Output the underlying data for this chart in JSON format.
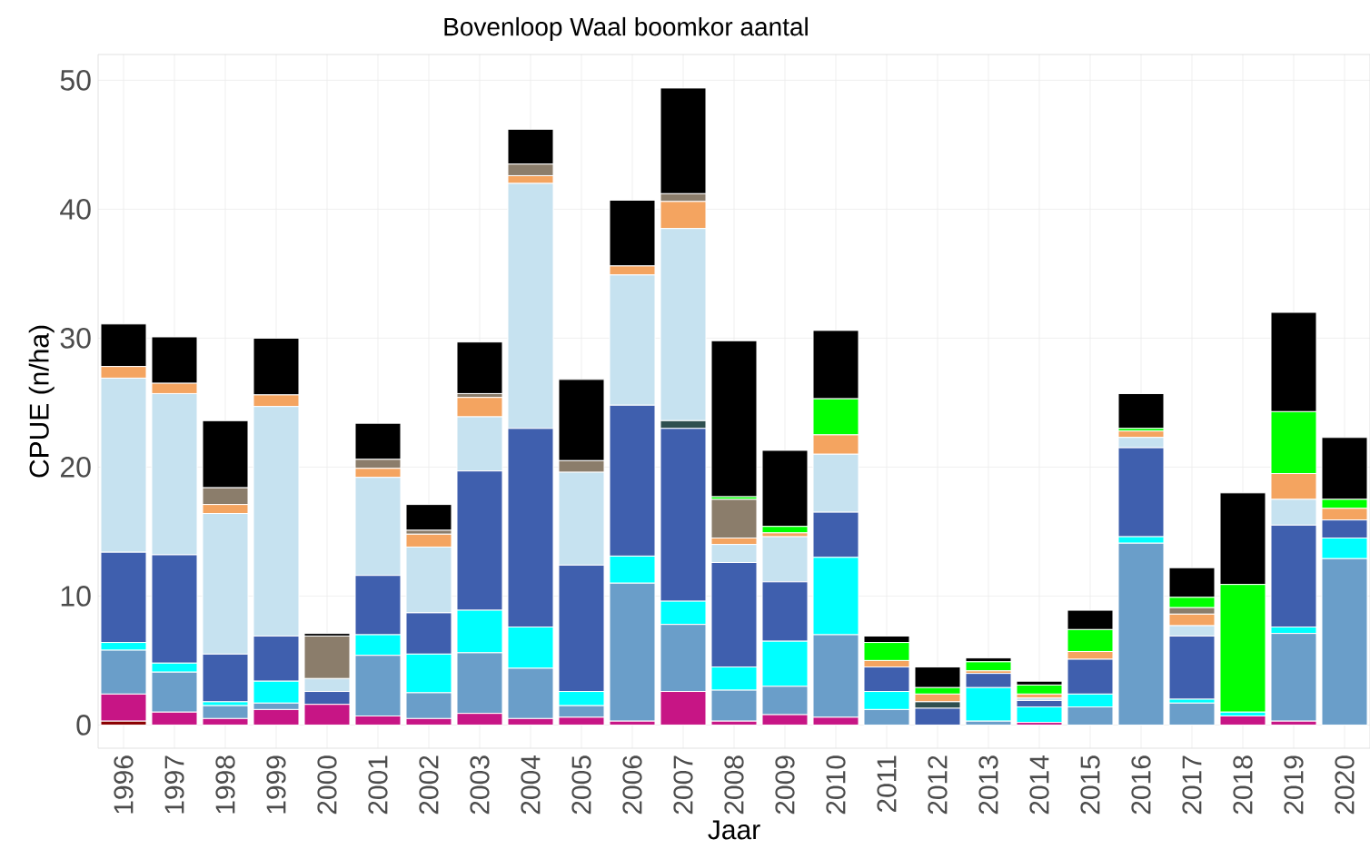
{
  "chart_data": {
    "type": "bar",
    "stacked": true,
    "title": "Bovenloop Waal boomkor aantal",
    "xlabel": "Jaar",
    "ylabel": "CPUE (n/ha)",
    "categories": [
      "1996",
      "1997",
      "1998",
      "1999",
      "2000",
      "2001",
      "2002",
      "2003",
      "2004",
      "2005",
      "2006",
      "2007",
      "2008",
      "2009",
      "2010",
      "2011",
      "2012",
      "2013",
      "2014",
      "2015",
      "2016",
      "2017",
      "2018",
      "2019",
      "2020"
    ],
    "ylim": [
      -1.8,
      52
    ],
    "yticks": [
      0,
      10,
      20,
      30,
      40,
      50
    ],
    "grid": true,
    "series": [
      {
        "color": "#8b0000",
        "values": [
          0.3,
          0,
          0,
          0,
          0,
          0,
          0,
          0,
          0,
          0,
          0,
          0,
          0,
          0,
          0,
          0,
          0,
          0,
          0,
          0,
          0,
          0,
          0,
          0,
          0
        ]
      },
      {
        "color": "#c71585",
        "values": [
          2.1,
          1.0,
          0.5,
          1.2,
          1.6,
          0.7,
          0.5,
          0.9,
          0.5,
          0.6,
          0.3,
          2.6,
          0.3,
          0.8,
          0.6,
          0,
          0,
          0,
          0.2,
          0,
          0,
          0,
          0.7,
          0.3,
          0
        ]
      },
      {
        "color": "#6a9ec9",
        "values": [
          3.4,
          3.1,
          1.0,
          0.5,
          0,
          4.7,
          2.0,
          4.7,
          3.9,
          0.9,
          10.7,
          5.2,
          2.4,
          2.2,
          6.4,
          1.2,
          0,
          0.3,
          0,
          1.4,
          14.1,
          1.7,
          0,
          6.8,
          12.9
        ]
      },
      {
        "color": "#00ffff",
        "values": [
          0.6,
          0.7,
          0.3,
          1.7,
          0,
          1.6,
          3.0,
          3.3,
          3.2,
          1.1,
          2.1,
          1.8,
          1.8,
          3.5,
          6.0,
          1.4,
          0,
          2.6,
          1.2,
          1.0,
          0.5,
          0.3,
          0.3,
          0.5,
          1.6
        ]
      },
      {
        "color": "#3f5fae",
        "values": [
          7.0,
          8.4,
          3.7,
          3.5,
          1.0,
          4.6,
          3.2,
          10.8,
          15.4,
          9.8,
          11.7,
          13.4,
          8.1,
          4.6,
          3.5,
          1.9,
          1.3,
          1.1,
          0.5,
          2.7,
          6.9,
          4.9,
          0,
          7.9,
          1.4
        ]
      },
      {
        "color": "#2f4f4f",
        "values": [
          0,
          0,
          0,
          0,
          0,
          0,
          0,
          0,
          0,
          0,
          0,
          0.6,
          0,
          0,
          0,
          0,
          0.5,
          0,
          0,
          0,
          0,
          0,
          0,
          0,
          0
        ]
      },
      {
        "color": "#c6e2f0",
        "values": [
          13.5,
          12.5,
          10.9,
          17.8,
          1.0,
          7.6,
          5.1,
          4.2,
          19.0,
          7.2,
          10.1,
          14.9,
          1.4,
          3.5,
          4.5,
          0,
          0,
          0,
          0.2,
          0,
          0.8,
          0.8,
          0,
          2.0,
          0
        ]
      },
      {
        "color": "#f4a460",
        "values": [
          0.9,
          0.8,
          0.7,
          0.9,
          0,
          0.7,
          1.0,
          1.5,
          0.6,
          0,
          0.7,
          2.1,
          0.5,
          0.3,
          1.5,
          0.5,
          0.6,
          0.2,
          0.3,
          0.6,
          0.5,
          0.9,
          0,
          2.0,
          0.9
        ]
      },
      {
        "color": "#8b7d6b",
        "values": [
          0,
          0,
          1.3,
          0,
          3.3,
          0.7,
          0.3,
          0.3,
          0.9,
          0.9,
          0,
          0.6,
          3.0,
          0,
          0,
          0,
          0,
          0,
          0,
          0,
          0,
          0.5,
          0,
          0,
          0
        ]
      },
      {
        "color": "#00ff00",
        "values": [
          0,
          0,
          0,
          0,
          0,
          0,
          0,
          0,
          0,
          0,
          0,
          0,
          0.2,
          0.5,
          2.8,
          1.4,
          0.5,
          0.7,
          0.7,
          1.7,
          0.2,
          0.8,
          9.9,
          4.8,
          0.7
        ]
      },
      {
        "color": "#000000",
        "values": [
          3.3,
          3.6,
          5.2,
          4.4,
          0.2,
          2.8,
          2.0,
          4.0,
          2.7,
          6.3,
          5.1,
          8.2,
          12.1,
          5.9,
          5.3,
          0.5,
          1.6,
          0.3,
          0.3,
          1.5,
          2.7,
          2.3,
          7.1,
          7.7,
          4.8
        ]
      }
    ]
  }
}
